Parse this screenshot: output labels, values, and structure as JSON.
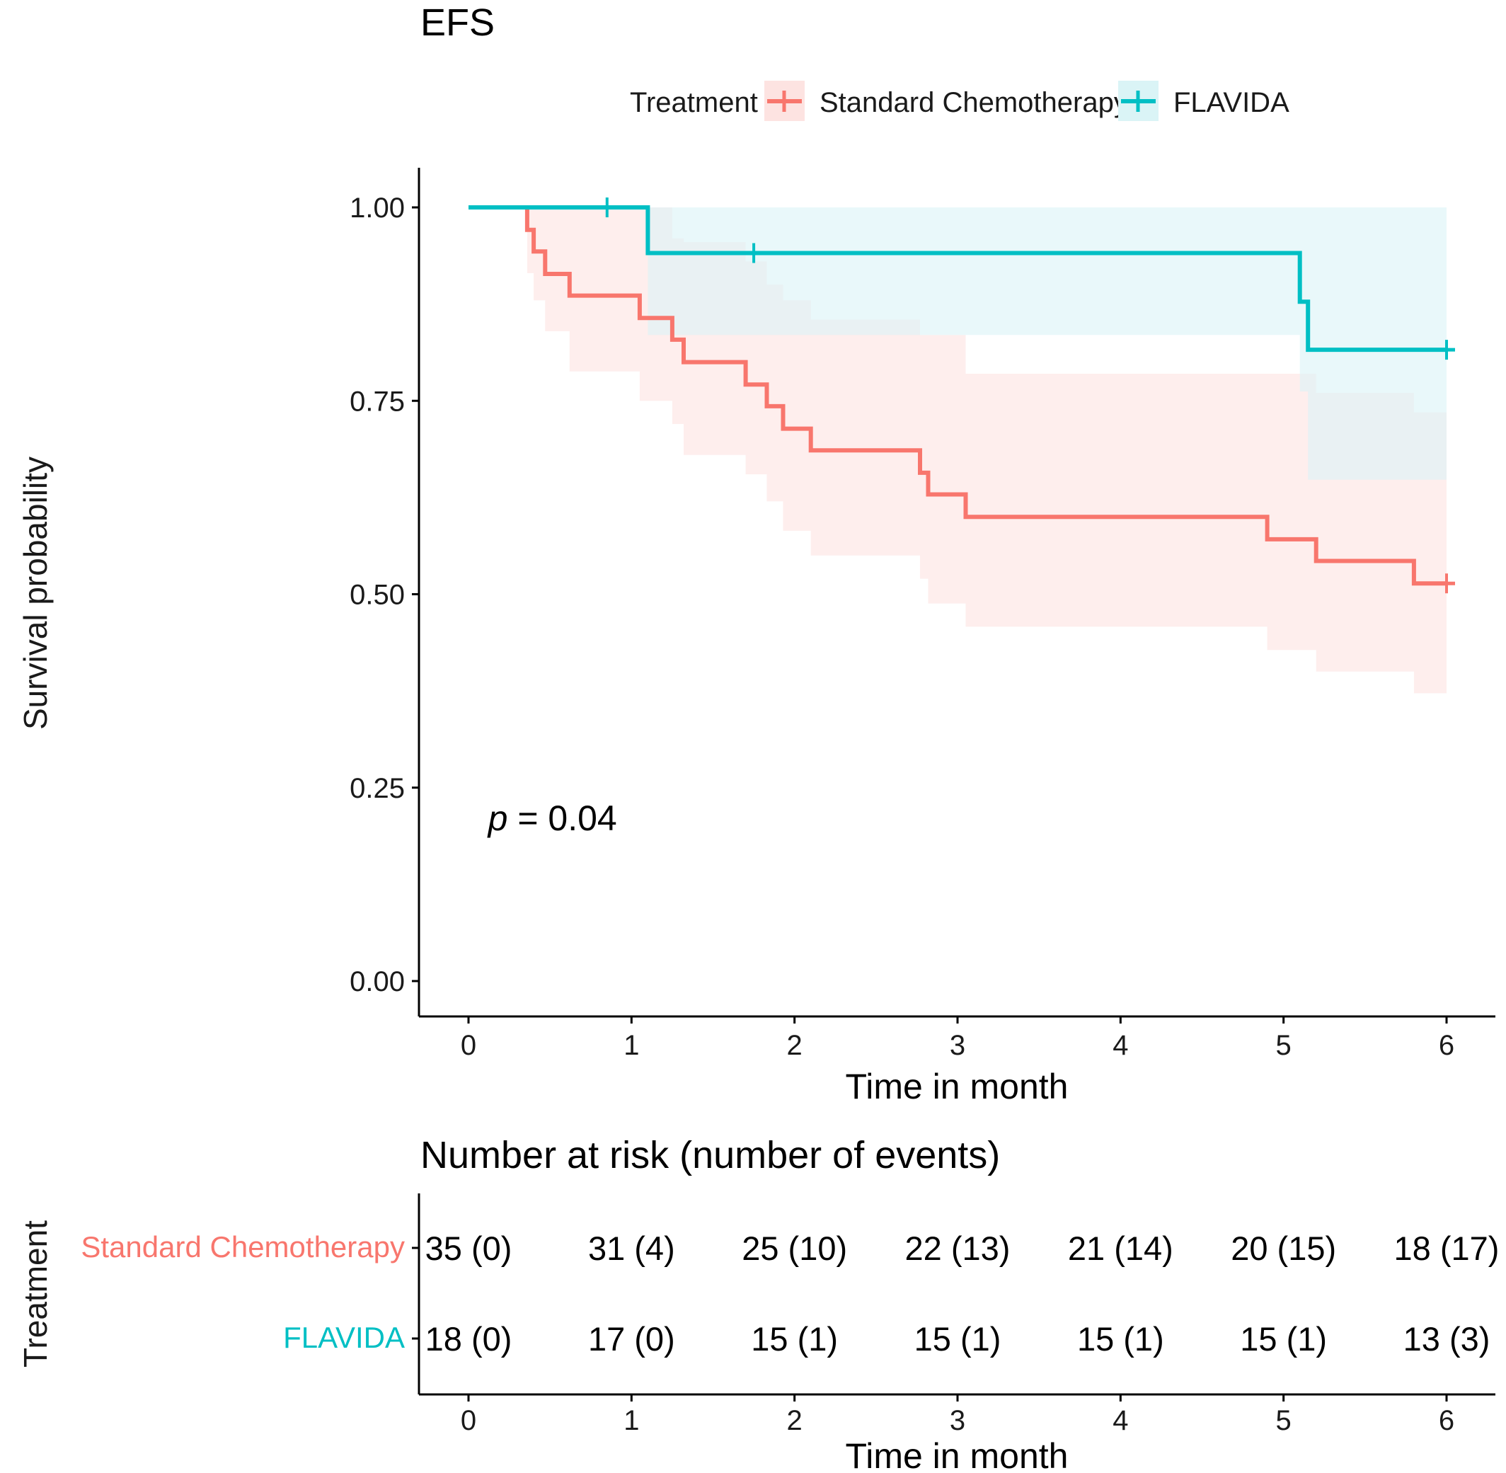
{
  "chart_data": [
    {
      "type": "line",
      "subtype": "kaplan-meier survival curve with confidence bands",
      "title": "EFS",
      "xlabel": "Time in month",
      "ylabel": "Survival probability",
      "xlim": [
        0,
        6
      ],
      "ylim": [
        0,
        1
      ],
      "xticks": [
        "0",
        "1",
        "2",
        "3",
        "4",
        "5",
        "6"
      ],
      "yticks": [
        "0.00",
        "0.25",
        "0.50",
        "0.75",
        "1.00"
      ],
      "legend": {
        "title": "Treatment",
        "position": "top",
        "items": [
          "Standard Chemotherapy",
          "FLAVIDA"
        ]
      },
      "annotation": {
        "p_italic": "p",
        "p_rest": " = 0.04",
        "x": 0.12,
        "y": 0.195
      },
      "grid": false,
      "series": [
        {
          "name": "Standard Chemotherapy",
          "color": "#F8766D",
          "band_color": "#FDE3E1",
          "steps": [
            [
              0,
              1.0
            ],
            [
              0.36,
              0.971
            ],
            [
              0.4,
              0.943
            ],
            [
              0.47,
              0.914
            ],
            [
              0.62,
              0.886
            ],
            [
              1.05,
              0.857
            ],
            [
              1.25,
              0.829
            ],
            [
              1.32,
              0.8
            ],
            [
              1.7,
              0.771
            ],
            [
              1.83,
              0.743
            ],
            [
              1.93,
              0.714
            ],
            [
              2.1,
              0.686
            ],
            [
              2.77,
              0.657
            ],
            [
              2.82,
              0.629
            ],
            [
              3.05,
              0.6
            ],
            [
              4.9,
              0.571
            ],
            [
              5.2,
              0.543
            ],
            [
              5.8,
              0.514
            ],
            [
              6.0,
              0.514
            ]
          ],
          "upper_steps": [
            [
              0,
              1.0
            ],
            [
              0.36,
              1.0
            ],
            [
              0.4,
              1.0
            ],
            [
              0.47,
              1.0
            ],
            [
              0.62,
              1.0
            ],
            [
              1.05,
              1.0
            ],
            [
              1.25,
              0.96
            ],
            [
              1.32,
              0.955
            ],
            [
              1.7,
              0.93
            ],
            [
              1.83,
              0.9
            ],
            [
              1.93,
              0.88
            ],
            [
              2.1,
              0.855
            ],
            [
              2.77,
              0.835
            ],
            [
              2.82,
              0.835
            ],
            [
              3.05,
              0.785
            ],
            [
              4.9,
              0.785
            ],
            [
              5.2,
              0.76
            ],
            [
              5.8,
              0.735
            ],
            [
              6.0,
              0.735
            ]
          ],
          "lower_steps": [
            [
              0,
              1.0
            ],
            [
              0.36,
              0.915
            ],
            [
              0.4,
              0.88
            ],
            [
              0.47,
              0.84
            ],
            [
              0.62,
              0.788
            ],
            [
              1.05,
              0.75
            ],
            [
              1.25,
              0.72
            ],
            [
              1.32,
              0.68
            ],
            [
              1.7,
              0.655
            ],
            [
              1.83,
              0.62
            ],
            [
              1.93,
              0.582
            ],
            [
              2.1,
              0.55
            ],
            [
              2.77,
              0.52
            ],
            [
              2.82,
              0.488
            ],
            [
              3.05,
              0.458
            ],
            [
              4.9,
              0.428
            ],
            [
              5.2,
              0.4
            ],
            [
              5.8,
              0.372
            ],
            [
              6.0,
              0.372
            ]
          ],
          "censor": [
            [
              6.0,
              0.514
            ]
          ]
        },
        {
          "name": "FLAVIDA",
          "color": "#00BFC4",
          "band_color": "#DAF4F6",
          "steps": [
            [
              0,
              1.0
            ],
            [
              1.1,
              0.941
            ],
            [
              5.1,
              0.878
            ],
            [
              5.15,
              0.816
            ],
            [
              6.0,
              0.816
            ]
          ],
          "upper_steps": [
            [
              0,
              1.0
            ],
            [
              1.1,
              1.0
            ],
            [
              5.1,
              1.0
            ],
            [
              5.15,
              1.0
            ],
            [
              6.0,
              1.0
            ]
          ],
          "lower_steps": [
            [
              0,
              1.0
            ],
            [
              1.1,
              0.835
            ],
            [
              5.1,
              0.762
            ],
            [
              5.15,
              0.648
            ],
            [
              6.0,
              0.648
            ]
          ],
          "censor": [
            [
              0.85,
              1.0
            ],
            [
              1.75,
              0.941
            ],
            [
              6.0,
              0.816
            ]
          ]
        }
      ]
    },
    {
      "type": "table",
      "title": "Number at risk (number of events)",
      "xlabel": "Time in month",
      "ylabel": "Treatment",
      "x": [
        0,
        1,
        2,
        3,
        4,
        5,
        6
      ],
      "xticks": [
        "0",
        "1",
        "2",
        "3",
        "4",
        "5",
        "6"
      ],
      "rows": [
        {
          "name": "Standard Chemotherapy",
          "color": "#F8766D",
          "cells": [
            "35 (0)",
            "31 (4)",
            "25 (10)",
            "22 (13)",
            "21 (14)",
            "20 (15)",
            "18 (17)"
          ]
        },
        {
          "name": "FLAVIDA",
          "color": "#00BFC4",
          "cells": [
            "18 (0)",
            "17 (0)",
            "15 (1)",
            "15 (1)",
            "15 (1)",
            "15 (1)",
            "13 (3)"
          ]
        }
      ]
    }
  ]
}
